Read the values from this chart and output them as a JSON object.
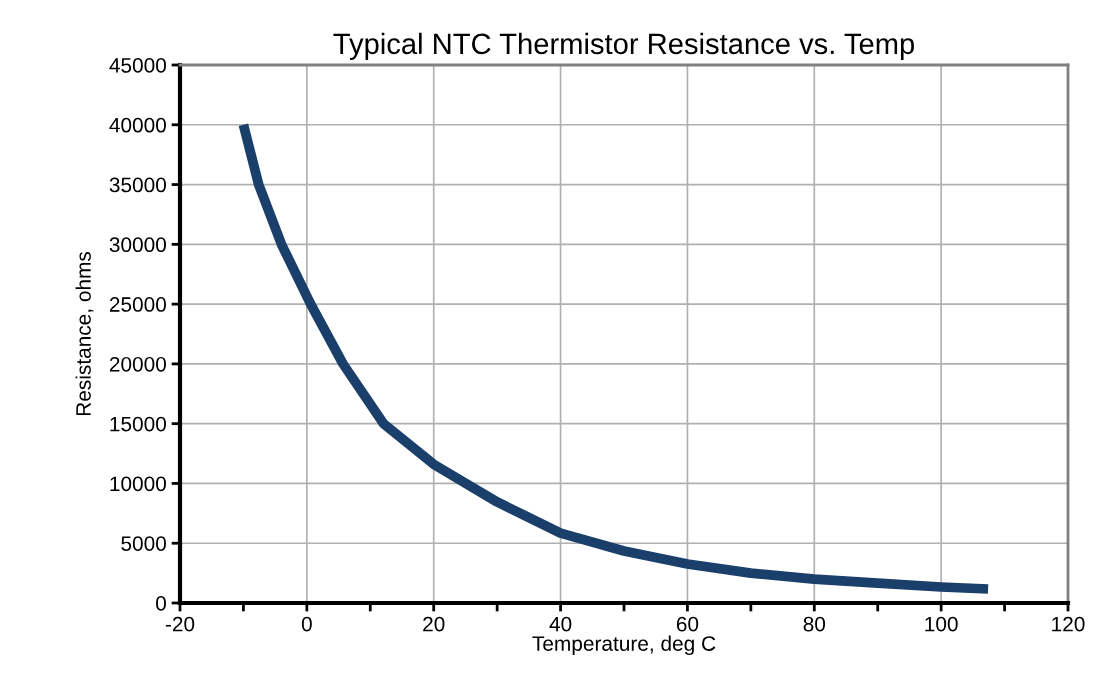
{
  "chart_data": {
    "type": "line",
    "title": "Typical NTC Thermistor Resistance vs. Temp",
    "xlabel": "Temperature, deg C",
    "ylabel": "Resistance, ohms",
    "series": [
      {
        "color": "#1b3f6b",
        "x": [
          -10,
          -7.6,
          -4,
          0.6,
          5.7,
          12.1,
          20,
          30,
          40,
          50,
          60,
          70,
          80,
          90,
          100,
          107.4
        ],
        "values": [
          40000,
          35000,
          30000,
          25000,
          20000,
          15000,
          11600,
          8450,
          5850,
          4350,
          3260,
          2500,
          2000,
          1670,
          1340,
          1170
        ]
      }
    ],
    "xlim": [
      -20,
      120
    ],
    "ylim": [
      0,
      45000
    ],
    "xticks": [
      -20,
      {
        "value": -10,
        "label": null
      },
      0,
      {
        "value": 10,
        "label": null
      },
      20,
      {
        "value": 30,
        "label": null
      },
      40,
      {
        "value": 50,
        "label": null
      },
      60,
      {
        "value": 70,
        "label": null
      },
      80,
      {
        "value": 90,
        "label": null
      },
      100,
      {
        "value": 110,
        "label": null
      },
      120
    ],
    "yticks": [
      0,
      5000,
      10000,
      15000,
      20000,
      25000,
      30000,
      35000,
      40000,
      45000
    ],
    "grid": true,
    "legend": false,
    "marker": "none",
    "line_style": "solid"
  }
}
